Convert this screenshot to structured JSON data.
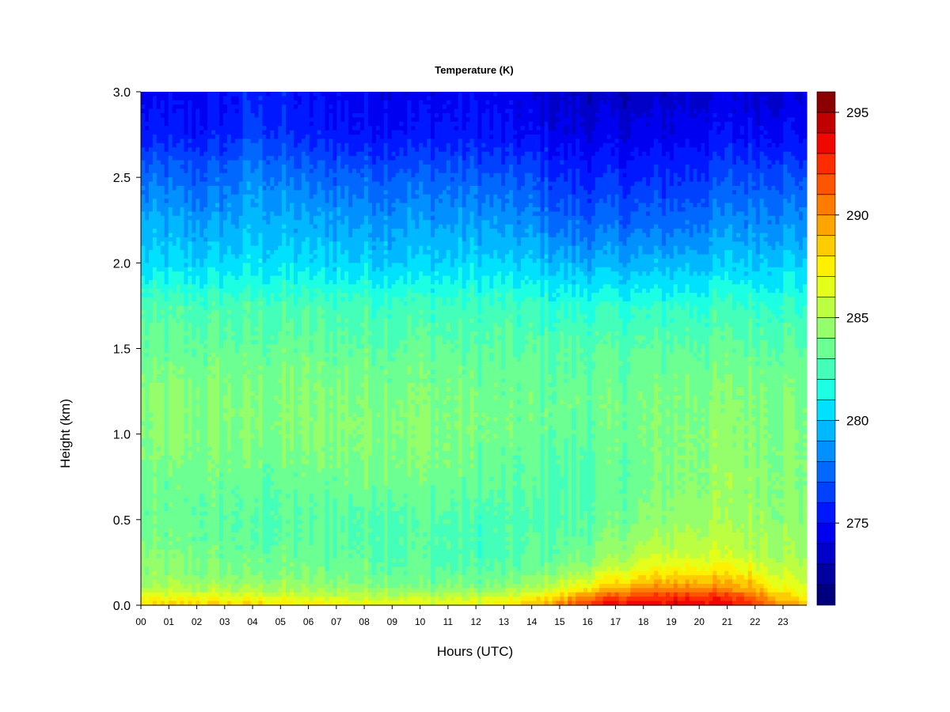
{
  "chart_data": {
    "type": "heatmap",
    "title": "Temperature (K)",
    "xlabel": "Hours (UTC)",
    "ylabel": "Height (km)",
    "x_ticks": [
      "00",
      "01",
      "02",
      "03",
      "04",
      "05",
      "06",
      "07",
      "08",
      "09",
      "10",
      "11",
      "12",
      "13",
      "14",
      "15",
      "16",
      "17",
      "18",
      "19",
      "20",
      "21",
      "22",
      "23"
    ],
    "xlim": [
      0,
      23.85
    ],
    "y_ticks": [
      "0.0",
      "0.5",
      "1.0",
      "1.5",
      "2.0",
      "2.5",
      "3.0"
    ],
    "ylim": [
      0,
      3.0
    ],
    "colorbar": {
      "range": [
        271,
        296
      ],
      "ticks": [
        "275",
        "280",
        "285",
        "290",
        "295"
      ],
      "levels": 25,
      "colors": [
        "#00007F",
        "#0000A0",
        "#0000C8",
        "#0000F0",
        "#0018FF",
        "#0040FF",
        "#0068FF",
        "#0090FF",
        "#00B8FF",
        "#00E0FF",
        "#1CFFE2",
        "#44FFBA",
        "#6CFF92",
        "#94FF6A",
        "#BCFF42",
        "#E4FF1A",
        "#FFF000",
        "#FFCC00",
        "#FFA400",
        "#FF7C00",
        "#FF5400",
        "#FF2C00",
        "#F00800",
        "#C00000",
        "#8B0000"
      ]
    },
    "hours": [
      0,
      1,
      2,
      3,
      4,
      5,
      6,
      7,
      8,
      9,
      10,
      11,
      12,
      13,
      14,
      15,
      16,
      17,
      18,
      19,
      20,
      21,
      22,
      23,
      23.85
    ],
    "heights_km": [
      0.0,
      0.05,
      0.1,
      0.2,
      0.3,
      0.5,
      0.75,
      1.0,
      1.25,
      1.5,
      1.75,
      2.0,
      2.25,
      2.5,
      2.75,
      3.0
    ],
    "temperature_K": [
      [
        288.0,
        286.5,
        285.0,
        284.2,
        284.0,
        283.5,
        283.5,
        284.0,
        284.0,
        283.3,
        282.5,
        280.3,
        279.0,
        277.5,
        275.3,
        274.5
      ],
      [
        288.0,
        286.5,
        285.0,
        284.2,
        283.8,
        283.3,
        283.5,
        284.0,
        284.0,
        283.3,
        282.5,
        280.2,
        279.0,
        277.5,
        275.3,
        274.5
      ],
      [
        288.5,
        286.8,
        285.0,
        284.0,
        283.7,
        283.3,
        283.5,
        284.0,
        284.0,
        283.3,
        282.5,
        280.2,
        278.8,
        277.3,
        275.3,
        274.5
      ],
      [
        288.0,
        286.5,
        284.8,
        283.8,
        283.5,
        283.2,
        283.5,
        284.0,
        284.0,
        283.3,
        282.5,
        280.3,
        279.0,
        277.5,
        275.5,
        274.8
      ],
      [
        288.0,
        286.5,
        284.8,
        283.8,
        283.3,
        283.0,
        283.3,
        284.0,
        284.0,
        283.3,
        282.5,
        280.5,
        279.5,
        278.5,
        276.5,
        275.5
      ],
      [
        287.8,
        286.3,
        284.8,
        283.8,
        283.3,
        283.0,
        283.3,
        284.0,
        284.0,
        283.3,
        282.5,
        280.5,
        279.3,
        278.0,
        276.0,
        275.3
      ],
      [
        287.5,
        286.0,
        284.5,
        283.7,
        283.3,
        283.0,
        283.5,
        284.0,
        284.0,
        283.3,
        282.5,
        280.3,
        279.0,
        277.5,
        275.5,
        274.8
      ],
      [
        287.5,
        286.0,
        284.5,
        283.7,
        283.3,
        283.0,
        283.7,
        284.2,
        284.0,
        283.3,
        282.5,
        280.3,
        279.0,
        277.5,
        275.5,
        274.8
      ],
      [
        287.0,
        285.8,
        284.3,
        283.5,
        283.2,
        283.0,
        283.7,
        284.2,
        284.0,
        283.3,
        282.5,
        280.2,
        278.8,
        277.3,
        275.3,
        274.5
      ],
      [
        287.0,
        285.8,
        284.3,
        283.5,
        283.0,
        283.0,
        284.0,
        284.3,
        284.0,
        283.3,
        282.5,
        280.2,
        278.8,
        277.3,
        275.3,
        274.5
      ],
      [
        286.8,
        285.5,
        284.0,
        283.3,
        283.0,
        283.0,
        283.7,
        284.2,
        284.0,
        283.3,
        282.5,
        280.2,
        278.8,
        277.3,
        275.3,
        274.5
      ],
      [
        286.8,
        285.5,
        284.0,
        283.0,
        282.7,
        282.8,
        283.7,
        284.0,
        283.8,
        283.2,
        282.3,
        280.2,
        278.8,
        277.3,
        275.3,
        274.5
      ],
      [
        287.0,
        285.8,
        284.0,
        283.0,
        282.5,
        282.5,
        283.3,
        283.8,
        283.7,
        283.0,
        282.3,
        280.2,
        278.8,
        277.3,
        275.3,
        274.8
      ],
      [
        287.5,
        286.0,
        284.2,
        283.0,
        282.5,
        282.5,
        283.0,
        283.5,
        283.5,
        283.0,
        282.2,
        280.0,
        278.5,
        277.0,
        275.0,
        274.3
      ],
      [
        288.5,
        286.8,
        285.0,
        283.5,
        283.0,
        282.7,
        283.0,
        283.5,
        283.5,
        283.0,
        282.0,
        280.0,
        278.3,
        276.8,
        274.8,
        274.0
      ],
      [
        290.5,
        288.5,
        286.0,
        284.3,
        283.3,
        282.8,
        282.7,
        283.3,
        283.5,
        283.0,
        281.8,
        279.5,
        277.5,
        276.0,
        274.5,
        273.5
      ],
      [
        292.5,
        290.5,
        287.5,
        285.0,
        283.8,
        283.0,
        282.8,
        283.3,
        283.5,
        283.0,
        281.8,
        279.3,
        277.3,
        275.8,
        274.3,
        273.3
      ],
      [
        293.5,
        291.5,
        288.8,
        286.0,
        284.5,
        283.5,
        283.2,
        283.5,
        283.5,
        283.0,
        281.8,
        279.3,
        277.3,
        275.8,
        274.3,
        273.3
      ],
      [
        293.8,
        292.0,
        289.5,
        287.0,
        285.3,
        284.0,
        283.5,
        283.7,
        283.7,
        283.0,
        281.8,
        279.3,
        277.3,
        275.8,
        274.3,
        273.3
      ],
      [
        294.0,
        292.5,
        290.0,
        287.5,
        285.8,
        284.5,
        284.0,
        284.0,
        283.8,
        283.2,
        282.0,
        279.5,
        277.5,
        276.0,
        274.5,
        273.5
      ],
      [
        294.0,
        292.5,
        290.0,
        287.5,
        285.8,
        284.8,
        284.2,
        284.2,
        284.0,
        283.2,
        282.0,
        279.7,
        277.8,
        276.2,
        274.8,
        273.8
      ],
      [
        293.8,
        292.3,
        289.8,
        287.5,
        285.8,
        284.8,
        284.5,
        284.3,
        284.0,
        283.3,
        282.2,
        280.0,
        278.3,
        276.8,
        275.0,
        274.0
      ],
      [
        292.5,
        291.0,
        289.0,
        287.0,
        285.5,
        284.8,
        284.5,
        284.3,
        284.0,
        283.3,
        282.2,
        280.0,
        278.5,
        277.0,
        275.0,
        274.0
      ],
      [
        290.0,
        288.5,
        287.0,
        285.8,
        285.0,
        284.5,
        284.3,
        284.2,
        284.0,
        283.3,
        282.2,
        280.2,
        278.5,
        277.0,
        275.0,
        274.0
      ],
      [
        289.0,
        287.5,
        286.2,
        285.3,
        284.8,
        284.3,
        284.2,
        284.0,
        283.8,
        283.2,
        282.0,
        280.0,
        278.5,
        277.0,
        275.0,
        274.0
      ]
    ]
  }
}
